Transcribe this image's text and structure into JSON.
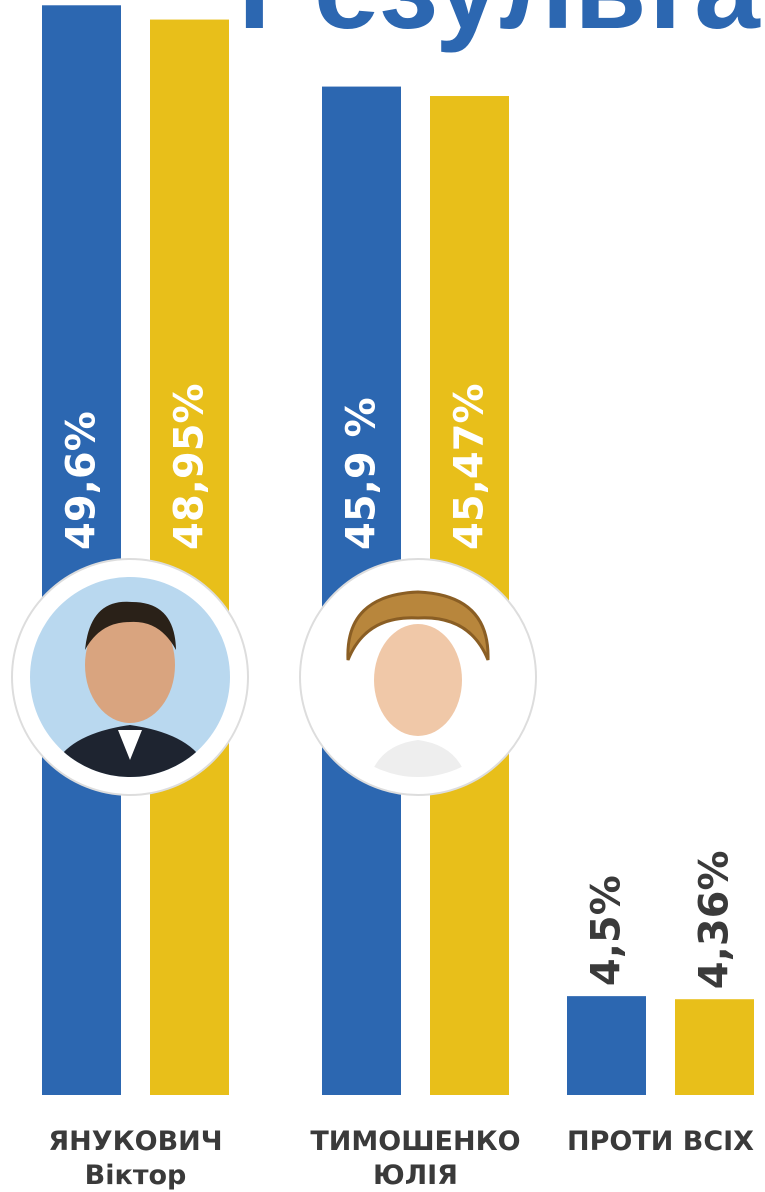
{
  "chart_data": {
    "type": "bar",
    "title": "Результа",
    "categories": [
      [
        "ЯНУКОВИЧ",
        "Віктор"
      ],
      [
        "ТИМОШЕНКО",
        "ЮЛІЯ"
      ],
      [
        "ПРОТИ ВСІХ"
      ]
    ],
    "series": [
      {
        "color": "#2c67b1",
        "values": [
          49.6,
          45.9,
          4.5
        ],
        "value_labels": [
          "49,6%",
          "45,9 %",
          "4,5%"
        ]
      },
      {
        "color": "#e8bf1a",
        "values": [
          48.95,
          45.47,
          4.36
        ],
        "value_labels": [
          "48,95%",
          "45,47%",
          "4,36%"
        ]
      }
    ]
  }
}
